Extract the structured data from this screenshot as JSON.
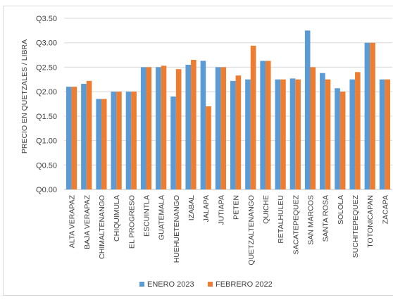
{
  "chart_data": {
    "type": "bar",
    "ylabel": "PRECIO EN QUETZALES / LIBRA",
    "ylim": [
      0,
      3.5
    ],
    "yticks": [
      "Q0.00",
      "Q0.50",
      "Q1.00",
      "Q1.50",
      "Q2.00",
      "Q2.50",
      "Q3.00",
      "Q3.50"
    ],
    "ytick_values": [
      0,
      0.5,
      1.0,
      1.5,
      2.0,
      2.5,
      3.0,
      3.5
    ],
    "grid": true,
    "legend_position": "bottom",
    "categories": [
      "ALTA VERAPAZ",
      "BAJA VERAPAZ",
      "CHIMALTENANGO",
      "CHIQUIMULA",
      "EL PROGRESO",
      "ESCUINTLA",
      "GUATEMALA",
      "HUEHUETENANGO",
      "IZABAL",
      "JALAPA",
      "JUTIAPA",
      "PETEN",
      "QUETZALTENANGO",
      "QUICHE",
      "RETALHULEU",
      "SACATEPEQUEZ",
      "SAN MARCOS",
      "SANTA ROSA",
      "SOLOLA",
      "SUCHITEPEQUEZ",
      "TOTONICAPAN",
      "ZACAPA"
    ],
    "series": [
      {
        "name": "ENERO 2023",
        "color": "#5b9bd5",
        "values": [
          2.1,
          2.16,
          1.85,
          2.0,
          2.0,
          2.5,
          2.5,
          1.9,
          2.55,
          2.63,
          2.5,
          2.22,
          2.25,
          2.63,
          2.25,
          2.27,
          3.25,
          2.38,
          2.07,
          2.25,
          3.0,
          2.25
        ]
      },
      {
        "name": "FEBRERO 2022",
        "color": "#ed7d31",
        "values": [
          2.1,
          2.22,
          1.85,
          2.0,
          2.0,
          2.5,
          2.53,
          2.46,
          2.65,
          1.7,
          2.5,
          2.33,
          2.94,
          2.63,
          2.25,
          2.25,
          2.5,
          2.25,
          2.0,
          2.4,
          3.0,
          2.25
        ]
      }
    ]
  }
}
